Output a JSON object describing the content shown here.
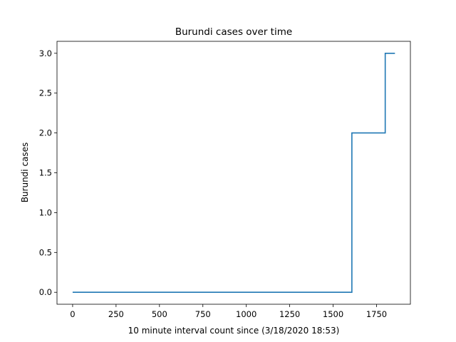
{
  "chart_data": {
    "type": "line",
    "title": "Burundi cases over time",
    "xlabel": "10 minute interval count since (3/18/2020 18:53)",
    "ylabel": "Burundi cases",
    "xlim": [
      -90,
      1945
    ],
    "ylim": [
      -0.15,
      3.15
    ],
    "xticks": [
      0,
      250,
      500,
      750,
      1000,
      1250,
      1500,
      1750
    ],
    "xtick_labels": [
      "0",
      "250",
      "500",
      "750",
      "1000",
      "1250",
      "1500",
      "1750"
    ],
    "yticks": [
      0.0,
      0.5,
      1.0,
      1.5,
      2.0,
      2.5,
      3.0
    ],
    "ytick_labels": [
      "0.0",
      "0.5",
      "1.0",
      "1.5",
      "2.0",
      "2.5",
      "3.0"
    ],
    "grid": false,
    "series": [
      {
        "color": "#1f77b4",
        "x": [
          0,
          1608,
          1608,
          1800,
          1800,
          1856
        ],
        "y": [
          0,
          0,
          2,
          2,
          3,
          3
        ]
      }
    ]
  }
}
